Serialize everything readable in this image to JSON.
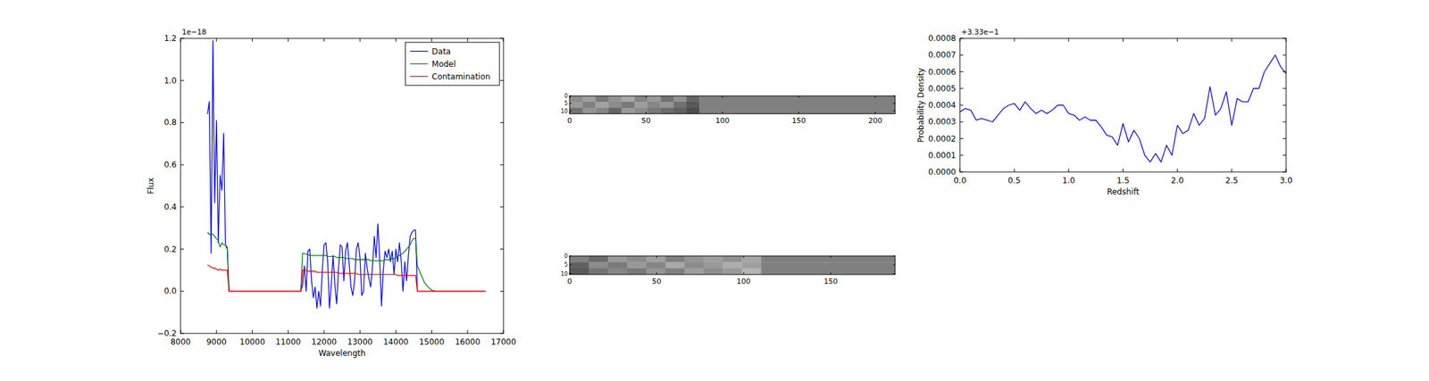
{
  "chart_data": [
    {
      "type": "line",
      "x_label": "Wavelength",
      "y_label": "Flux",
      "annotations": [
        "1e−18"
      ],
      "legend": "upper right",
      "grid": false,
      "xlim": [
        8000,
        17000
      ],
      "ylim": [
        -0.2,
        1.2
      ],
      "xticks": [
        8000,
        9000,
        10000,
        11000,
        12000,
        13000,
        14000,
        15000,
        16000,
        17000
      ],
      "yticks": [
        {
          "value": -0.2,
          "label": "−0.2"
        },
        {
          "value": 0,
          "label": "0.0"
        },
        {
          "value": 0.2,
          "label": "0.2"
        },
        {
          "value": 0.4,
          "label": "0.4"
        },
        {
          "value": 0.6,
          "label": "0.6"
        },
        {
          "value": 0.8,
          "label": "0.8"
        },
        {
          "value": 1.0,
          "label": "1.0"
        },
        {
          "value": 1.2,
          "label": "1.2"
        }
      ],
      "x": [
        8750,
        8800,
        8850,
        8900,
        8950,
        9000,
        9050,
        9100,
        9150,
        9200,
        9250,
        9300,
        9350,
        11350,
        11400,
        11450,
        11500,
        11550,
        11600,
        11650,
        11700,
        11750,
        11800,
        11850,
        11900,
        11950,
        12000,
        12050,
        12100,
        12150,
        12200,
        12250,
        12300,
        12350,
        12400,
        12450,
        12500,
        12550,
        12600,
        12650,
        12700,
        12750,
        12800,
        12850,
        12900,
        12950,
        13000,
        13050,
        13100,
        13150,
        13200,
        13250,
        13300,
        13350,
        13400,
        13450,
        13500,
        13550,
        13600,
        13650,
        13700,
        13750,
        13800,
        13850,
        13900,
        13950,
        14000,
        14050,
        14100,
        14150,
        14200,
        14250,
        14300,
        14350,
        14400,
        14450,
        14500,
        14550,
        14600,
        14700,
        14800,
        14900,
        15000,
        15100,
        16500
      ],
      "series": [
        {
          "name": "Data",
          "color": "#0000ff",
          "values": [
            0.84,
            0.9,
            0.18,
            1.19,
            0.42,
            0.81,
            0.23,
            0.55,
            0.48,
            0.75,
            0.22,
            0.2,
            0.0,
            0.0,
            0.03,
            0.12,
            0.0,
            0.19,
            0.2,
            0.05,
            -0.03,
            0.02,
            -0.08,
            0.0,
            -0.07,
            0.1,
            0.22,
            0.23,
            0.14,
            -0.08,
            0.03,
            0.17,
            0.03,
            -0.06,
            0.1,
            0.22,
            0.21,
            0.05,
            0.19,
            0.23,
            0.13,
            0.02,
            -0.02,
            0.05,
            0.2,
            0.23,
            0.16,
            -0.02,
            0.0,
            0.18,
            0.11,
            0.06,
            0.02,
            0.12,
            0.26,
            0.16,
            0.32,
            0.15,
            -0.07,
            0.1,
            0.19,
            0.16,
            0.2,
            0.14,
            0.19,
            0.08,
            0.2,
            0.14,
            0.23,
            0.14,
            0.0,
            0.14,
            0.05,
            0.17,
            0.26,
            0.28,
            0.29,
            0.29,
            0.0,
            0.0,
            0.0,
            0.0,
            0.0,
            0.0,
            0.0
          ]
        },
        {
          "name": "Model",
          "color": "#008000",
          "values": [
            0.28,
            0.27,
            0.27,
            0.27,
            0.26,
            0.25,
            0.24,
            0.21,
            0.23,
            0.22,
            0.22,
            0.21,
            0.0,
            0.0,
            0.18,
            0.18,
            0.175,
            0.175,
            0.17,
            0.17,
            0.17,
            0.17,
            0.17,
            0.17,
            0.17,
            0.17,
            0.17,
            0.17,
            0.165,
            0.165,
            0.165,
            0.165,
            0.165,
            0.16,
            0.16,
            0.16,
            0.16,
            0.16,
            0.155,
            0.155,
            0.155,
            0.155,
            0.155,
            0.15,
            0.15,
            0.15,
            0.15,
            0.15,
            0.15,
            0.15,
            0.15,
            0.15,
            0.145,
            0.145,
            0.145,
            0.145,
            0.145,
            0.145,
            0.145,
            0.145,
            0.15,
            0.15,
            0.15,
            0.15,
            0.155,
            0.155,
            0.16,
            0.165,
            0.17,
            0.175,
            0.18,
            0.19,
            0.2,
            0.21,
            0.22,
            0.24,
            0.25,
            0.25,
            0.12,
            0.08,
            0.04,
            0.02,
            0.005,
            0.0,
            0.0
          ]
        },
        {
          "name": "Contamination",
          "color": "#ff0000",
          "values": [
            0.125,
            0.12,
            0.115,
            0.11,
            0.11,
            0.105,
            0.1,
            0.105,
            0.1,
            0.1,
            0.1,
            0.1,
            0.0,
            0.0,
            0.1,
            0.1,
            0.1,
            0.095,
            0.095,
            0.095,
            0.095,
            0.095,
            0.09,
            0.09,
            0.09,
            0.09,
            0.09,
            0.09,
            0.09,
            0.09,
            0.09,
            0.09,
            0.09,
            0.09,
            0.085,
            0.085,
            0.085,
            0.085,
            0.085,
            0.085,
            0.085,
            0.085,
            0.085,
            0.085,
            0.085,
            0.08,
            0.08,
            0.08,
            0.08,
            0.08,
            0.08,
            0.08,
            0.08,
            0.08,
            0.08,
            0.08,
            0.08,
            0.08,
            0.08,
            0.08,
            0.08,
            0.08,
            0.08,
            0.08,
            0.08,
            0.08,
            0.08,
            0.075,
            0.075,
            0.075,
            0.075,
            0.075,
            0.075,
            0.075,
            0.075,
            0.075,
            0.075,
            0.075,
            0.0,
            0.0,
            0.0,
            0.0,
            0.0,
            0.0,
            0.0
          ]
        }
      ]
    },
    {
      "type": "heatmap",
      "xlim": [
        0,
        213
      ],
      "ylim": [
        0,
        12
      ],
      "xticks": [
        0,
        50,
        100,
        150,
        200
      ],
      "yticks": [
        0,
        5,
        10
      ],
      "x_edges": [
        0,
        8.5,
        17,
        25.5,
        34,
        42.5,
        51,
        59.5,
        68,
        76.5,
        85,
        213
      ],
      "y_edges": [
        0,
        4,
        8,
        12
      ],
      "cells": [
        [
          0.55,
          0.62,
          0.48,
          0.58,
          0.66,
          0.52,
          0.6,
          0.45,
          0.57,
          0.4,
          0.5
        ],
        [
          0.6,
          0.5,
          0.63,
          0.55,
          0.47,
          0.62,
          0.53,
          0.58,
          0.44,
          0.35,
          0.5
        ],
        [
          0.45,
          0.58,
          0.52,
          0.4,
          0.6,
          0.55,
          0.48,
          0.42,
          0.38,
          0.3,
          0.5
        ]
      ]
    },
    {
      "type": "heatmap",
      "xlim": [
        0,
        187
      ],
      "ylim": [
        0,
        10.5
      ],
      "xticks": [
        0,
        50,
        100,
        150
      ],
      "yticks": [
        0,
        5,
        10
      ],
      "x_edges": [
        0,
        11,
        22,
        33,
        44,
        55,
        66,
        77,
        88,
        99,
        110,
        187
      ],
      "y_edges": [
        0,
        3.5,
        7,
        10.5
      ],
      "cells": [
        [
          0.5,
          0.42,
          0.6,
          0.55,
          0.63,
          0.5,
          0.58,
          0.62,
          0.57,
          0.65,
          0.5
        ],
        [
          0.38,
          0.55,
          0.48,
          0.6,
          0.52,
          0.66,
          0.55,
          0.6,
          0.68,
          0.62,
          0.5
        ],
        [
          0.35,
          0.45,
          0.52,
          0.47,
          0.58,
          0.5,
          0.62,
          0.55,
          0.6,
          0.7,
          0.5
        ]
      ]
    },
    {
      "type": "line",
      "x_label": "Redshift",
      "y_label": "Probability Density",
      "annotations": [
        "+3.33e−1"
      ],
      "grid": false,
      "xlim": [
        0,
        3
      ],
      "ylim": [
        0,
        0.0008
      ],
      "xticks": [
        {
          "value": 0,
          "label": "0.0"
        },
        {
          "value": 0.5,
          "label": "0.5"
        },
        {
          "value": 1.0,
          "label": "1.0"
        },
        {
          "value": 1.5,
          "label": "1.5"
        },
        {
          "value": 2.0,
          "label": "2.0"
        },
        {
          "value": 2.5,
          "label": "2.5"
        },
        {
          "value": 3.0,
          "label": "3.0"
        }
      ],
      "yticks": [
        {
          "value": 0,
          "label": "0.0000"
        },
        {
          "value": 0.0001,
          "label": "0.0001"
        },
        {
          "value": 0.0002,
          "label": "0.0002"
        },
        {
          "value": 0.0003,
          "label": "0.0003"
        },
        {
          "value": 0.0004,
          "label": "0.0004"
        },
        {
          "value": 0.0005,
          "label": "0.0005"
        },
        {
          "value": 0.0006,
          "label": "0.0006"
        },
        {
          "value": 0.0007,
          "label": "0.0007"
        },
        {
          "value": 0.0008,
          "label": "0.0008"
        }
      ],
      "x": [
        0,
        0.05,
        0.1,
        0.15,
        0.2,
        0.25,
        0.3,
        0.35,
        0.4,
        0.45,
        0.5,
        0.55,
        0.6,
        0.65,
        0.7,
        0.75,
        0.8,
        0.85,
        0.9,
        0.95,
        1.0,
        1.05,
        1.1,
        1.15,
        1.2,
        1.25,
        1.3,
        1.35,
        1.4,
        1.45,
        1.5,
        1.55,
        1.6,
        1.65,
        1.7,
        1.75,
        1.8,
        1.85,
        1.9,
        1.95,
        2.0,
        2.05,
        2.1,
        2.15,
        2.2,
        2.25,
        2.3,
        2.35,
        2.4,
        2.45,
        2.5,
        2.55,
        2.6,
        2.65,
        2.7,
        2.75,
        2.8,
        2.85,
        2.9,
        2.95,
        3.0
      ],
      "series": [
        {
          "color": "#0000ff",
          "values": [
            0.00036,
            0.00038,
            0.00037,
            0.00031,
            0.00032,
            0.00031,
            0.0003,
            0.00034,
            0.00038,
            0.0004,
            0.00041,
            0.00037,
            0.00042,
            0.00038,
            0.00035,
            0.00037,
            0.00035,
            0.00037,
            0.0004,
            0.0004,
            0.00035,
            0.00034,
            0.00031,
            0.00033,
            0.00031,
            0.00031,
            0.00027,
            0.00022,
            0.00021,
            0.00016,
            0.00029,
            0.00018,
            0.00025,
            0.0002,
            0.0001,
            6e-05,
            0.00011,
            6e-05,
            0.00016,
            0.0001,
            0.00028,
            0.00023,
            0.00025,
            0.00035,
            0.00028,
            0.00032,
            0.00051,
            0.00034,
            0.00038,
            0.00048,
            0.00028,
            0.00044,
            0.00042,
            0.00042,
            0.0005,
            0.0005,
            0.0006,
            0.00065,
            0.0007,
            0.00063,
            0.00059
          ]
        }
      ]
    }
  ]
}
